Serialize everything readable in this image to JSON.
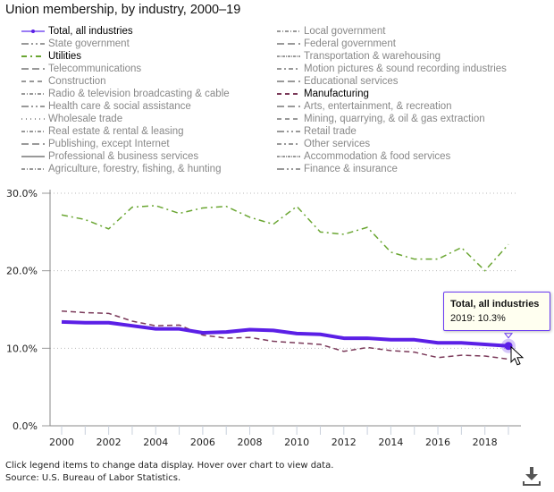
{
  "title": "Union membership, by industry, 2000–19",
  "legend": {
    "left": [
      {
        "label": "Total, all industries",
        "active": true,
        "color": "#5b1fe6",
        "dash": "solid-dot"
      },
      {
        "label": "State government",
        "active": false,
        "dash": "8 3 2 3 2 3"
      },
      {
        "label": "Utilities",
        "active": true,
        "color": "#6aa632",
        "dash": "6 4 2 4"
      },
      {
        "label": "Telecommunications",
        "active": false,
        "dash": "8 4"
      },
      {
        "label": "Construction",
        "active": false,
        "dash": "5 4"
      },
      {
        "label": "Radio & television broadcasting & cable",
        "active": false,
        "dash": "4 2 1 2"
      },
      {
        "label": "Health care & social assistance",
        "active": false,
        "dash": "8 3 2 3 2 3"
      },
      {
        "label": "Wholesale trade",
        "active": false,
        "dash": "1 4"
      },
      {
        "label": "Real estate & rental & leasing",
        "active": false,
        "dash": "4 2 1 2"
      },
      {
        "label": "Publishing, except Internet",
        "active": false,
        "dash": "8 4"
      },
      {
        "label": "Professional & business services",
        "active": false,
        "dash": ""
      },
      {
        "label": "Agriculture, forestry, fishing, & hunting",
        "active": false,
        "dash": "4 2 1 2"
      }
    ],
    "right": [
      {
        "label": "Local government",
        "active": false,
        "dash": "4 2 1 2"
      },
      {
        "label": "Federal government",
        "active": false,
        "dash": "8 4"
      },
      {
        "label": "Transportation & warehousing",
        "active": false,
        "dash": "3 1 1 1"
      },
      {
        "label": "Motion pictures & sound recording industries",
        "active": false,
        "dash": "5 3 2 3"
      },
      {
        "label": "Educational services",
        "active": false,
        "dash": "8 4"
      },
      {
        "label": "Manufacturing",
        "active": true,
        "color": "#7b3a5a",
        "dash": "5 4"
      },
      {
        "label": "Arts, entertainment, & recreation",
        "active": false,
        "dash": "8 4"
      },
      {
        "label": "Mining, quarrying, & oil & gas extraction",
        "active": false,
        "dash": "5 4"
      },
      {
        "label": "Retail trade",
        "active": false,
        "dash": "8 3 2 3 2 3"
      },
      {
        "label": "Other services",
        "active": false,
        "dash": "5 3 2 3"
      },
      {
        "label": "Accommodation & food services",
        "active": false,
        "dash": "3 1 1 1"
      },
      {
        "label": "Finance & insurance",
        "active": false,
        "dash": "8 3 2 3 2 3"
      }
    ],
    "inactive_color": "#999999"
  },
  "chart_data": {
    "type": "line",
    "title": "Union membership, by industry, 2000–19",
    "x": [
      2000,
      2001,
      2002,
      2003,
      2004,
      2005,
      2006,
      2007,
      2008,
      2009,
      2010,
      2011,
      2012,
      2013,
      2014,
      2015,
      2016,
      2017,
      2018,
      2019
    ],
    "xticks": [
      "2000",
      "2002",
      "2004",
      "2006",
      "2008",
      "2010",
      "2012",
      "2014",
      "2016",
      "2018"
    ],
    "yticks": [
      "0.0%",
      "10.0%",
      "20.0%",
      "30.0%"
    ],
    "ylim": [
      0,
      30
    ],
    "grid": "horizontal dotted",
    "series": [
      {
        "name": "Utilities",
        "color": "#6aa632",
        "values": [
          27.2,
          26.6,
          25.4,
          28.2,
          28.4,
          27.4,
          28.1,
          28.3,
          26.9,
          26.0,
          28.3,
          25.0,
          24.7,
          25.6,
          22.4,
          21.5,
          21.5,
          23.0,
          20.0,
          23.4
        ]
      },
      {
        "name": "Manufacturing",
        "color": "#7b3a5a",
        "values": [
          14.8,
          14.6,
          14.5,
          13.5,
          12.9,
          13.0,
          11.7,
          11.3,
          11.4,
          10.9,
          10.7,
          10.5,
          9.6,
          10.1,
          9.7,
          9.5,
          8.8,
          9.1,
          9.0,
          8.6
        ]
      },
      {
        "name": "Total, all industries",
        "color": "#5b1fe6",
        "values": [
          13.4,
          13.3,
          13.3,
          12.9,
          12.5,
          12.5,
          12.0,
          12.1,
          12.4,
          12.3,
          11.9,
          11.8,
          11.3,
          11.3,
          11.1,
          11.1,
          10.7,
          10.7,
          10.5,
          10.3
        ]
      }
    ]
  },
  "tooltip": {
    "title": "Total, all industries",
    "value": "2019: 10.3%"
  },
  "footer": {
    "note": "Click legend items to change data display. Hover over chart to view data.",
    "source": "Source: U.S. Bureau of Labor Statistics."
  },
  "icons": {
    "download": "download-icon"
  }
}
